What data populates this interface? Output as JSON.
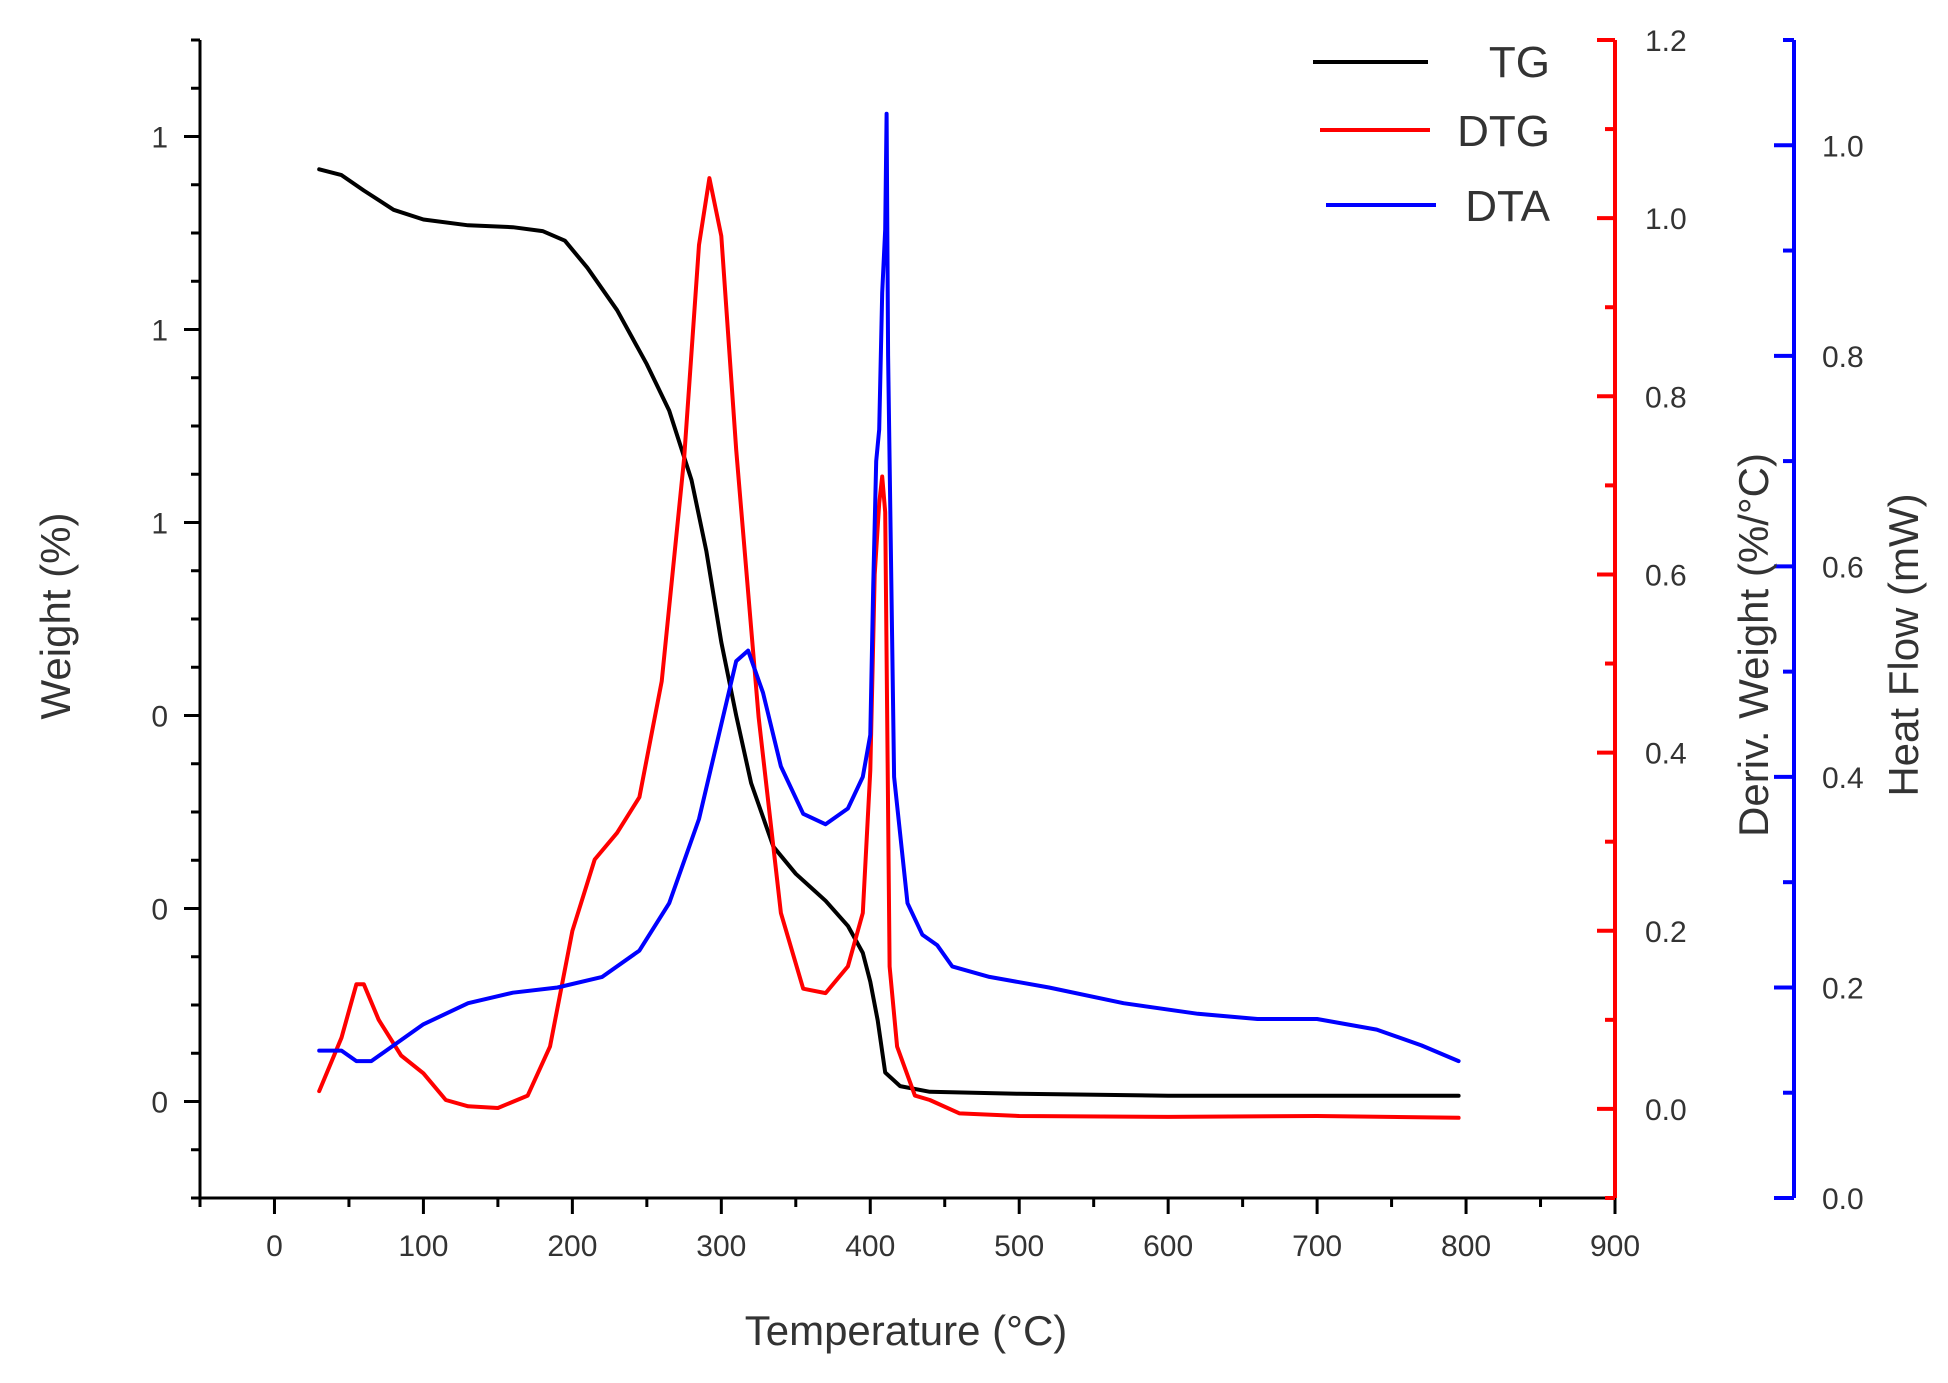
{
  "chart_data": {
    "type": "line",
    "xlabel": "Temperature (°C)",
    "ylabel_left": "Weight (%)",
    "ylabel_right1": "Deriv. Weight (%/°C)",
    "ylabel_right2": "Heat Flow  (mW)",
    "xlim": [
      -50,
      900
    ],
    "xticks": [
      0,
      100,
      200,
      300,
      400,
      500,
      600,
      700,
      800,
      900
    ],
    "ylim_left": [
      -0.5,
      5.5
    ],
    "yticks_left": [
      0,
      1,
      2,
      3,
      4,
      5
    ],
    "ytick_labels_left": [
      "0",
      "0",
      "0",
      "1",
      "1",
      "1"
    ],
    "ylim_right1": [
      -0.1,
      1.2
    ],
    "yticks_right1": [
      0.0,
      0.2,
      0.4,
      0.6,
      0.8,
      1.0,
      1.2
    ],
    "ytick_labels_right1": [
      "0.0",
      "0.2",
      "0.4",
      "0.6",
      "0.8",
      "1.0",
      "1.2"
    ],
    "ylim_right2": [
      0.0,
      1.1
    ],
    "yticks_right2": [
      0.0,
      0.2,
      0.4,
      0.6,
      0.8,
      1.0
    ],
    "ytick_labels_right2": [
      "0.0",
      "0.2",
      "0.4",
      "0.6",
      "0.8",
      "1.0"
    ],
    "legend": [
      {
        "name": "TG",
        "color": "#000000"
      },
      {
        "name": "DTG",
        "color": "#ff0000"
      },
      {
        "name": "DTA",
        "color": "#0000ff"
      }
    ],
    "legend_position": "top-right",
    "series": [
      {
        "name": "TG",
        "axis": "left",
        "color": "#000000",
        "points": [
          [
            30,
            4.83
          ],
          [
            45,
            4.8
          ],
          [
            60,
            4.72
          ],
          [
            80,
            4.62
          ],
          [
            100,
            4.57
          ],
          [
            130,
            4.54
          ],
          [
            160,
            4.53
          ],
          [
            180,
            4.51
          ],
          [
            195,
            4.46
          ],
          [
            210,
            4.32
          ],
          [
            230,
            4.1
          ],
          [
            250,
            3.82
          ],
          [
            265,
            3.58
          ],
          [
            280,
            3.22
          ],
          [
            290,
            2.85
          ],
          [
            300,
            2.38
          ],
          [
            310,
            2.0
          ],
          [
            320,
            1.65
          ],
          [
            335,
            1.32
          ],
          [
            350,
            1.18
          ],
          [
            370,
            1.04
          ],
          [
            385,
            0.91
          ],
          [
            395,
            0.77
          ],
          [
            400,
            0.62
          ],
          [
            405,
            0.42
          ],
          [
            410,
            0.15
          ],
          [
            420,
            0.08
          ],
          [
            440,
            0.05
          ],
          [
            500,
            0.04
          ],
          [
            600,
            0.03
          ],
          [
            700,
            0.03
          ],
          [
            795,
            0.03
          ]
        ]
      },
      {
        "name": "DTG",
        "axis": "right1",
        "color": "#ff0000",
        "points": [
          [
            30,
            0.02
          ],
          [
            45,
            0.08
          ],
          [
            55,
            0.14
          ],
          [
            60,
            0.14
          ],
          [
            70,
            0.1
          ],
          [
            85,
            0.06
          ],
          [
            100,
            0.04
          ],
          [
            115,
            0.01
          ],
          [
            130,
            0.003
          ],
          [
            150,
            0.001
          ],
          [
            170,
            0.015
          ],
          [
            185,
            0.07
          ],
          [
            200,
            0.2
          ],
          [
            215,
            0.28
          ],
          [
            230,
            0.31
          ],
          [
            245,
            0.35
          ],
          [
            260,
            0.48
          ],
          [
            275,
            0.73
          ],
          [
            285,
            0.97
          ],
          [
            292,
            1.045
          ],
          [
            300,
            0.98
          ],
          [
            310,
            0.74
          ],
          [
            325,
            0.44
          ],
          [
            340,
            0.22
          ],
          [
            355,
            0.135
          ],
          [
            370,
            0.13
          ],
          [
            385,
            0.16
          ],
          [
            395,
            0.22
          ],
          [
            400,
            0.38
          ],
          [
            403,
            0.6
          ],
          [
            406,
            0.68
          ],
          [
            408,
            0.71
          ],
          [
            410,
            0.67
          ],
          [
            413,
            0.16
          ],
          [
            418,
            0.07
          ],
          [
            430,
            0.015
          ],
          [
            440,
            0.01
          ],
          [
            460,
            -0.005
          ],
          [
            500,
            -0.008
          ],
          [
            600,
            -0.009
          ],
          [
            700,
            -0.008
          ],
          [
            795,
            -0.01
          ]
        ]
      },
      {
        "name": "DTA",
        "axis": "right2",
        "color": "#0000ff",
        "points": [
          [
            30,
            0.14
          ],
          [
            45,
            0.14
          ],
          [
            55,
            0.13
          ],
          [
            65,
            0.13
          ],
          [
            80,
            0.145
          ],
          [
            100,
            0.165
          ],
          [
            130,
            0.185
          ],
          [
            160,
            0.195
          ],
          [
            190,
            0.2
          ],
          [
            220,
            0.21
          ],
          [
            245,
            0.235
          ],
          [
            265,
            0.28
          ],
          [
            285,
            0.36
          ],
          [
            300,
            0.45
          ],
          [
            310,
            0.51
          ],
          [
            318,
            0.52
          ],
          [
            328,
            0.48
          ],
          [
            340,
            0.41
          ],
          [
            355,
            0.365
          ],
          [
            370,
            0.355
          ],
          [
            385,
            0.37
          ],
          [
            395,
            0.4
          ],
          [
            400,
            0.44
          ],
          [
            402,
            0.58
          ],
          [
            404,
            0.7
          ],
          [
            406,
            0.73
          ],
          [
            408,
            0.86
          ],
          [
            410,
            0.92
          ],
          [
            411,
            1.03
          ],
          [
            412,
            0.8
          ],
          [
            416,
            0.4
          ],
          [
            425,
            0.28
          ],
          [
            435,
            0.25
          ],
          [
            445,
            0.24
          ],
          [
            455,
            0.22
          ],
          [
            480,
            0.21
          ],
          [
            520,
            0.2
          ],
          [
            570,
            0.185
          ],
          [
            620,
            0.175
          ],
          [
            660,
            0.17
          ],
          [
            700,
            0.17
          ],
          [
            740,
            0.16
          ],
          [
            770,
            0.145
          ],
          [
            795,
            0.13
          ]
        ]
      }
    ]
  }
}
